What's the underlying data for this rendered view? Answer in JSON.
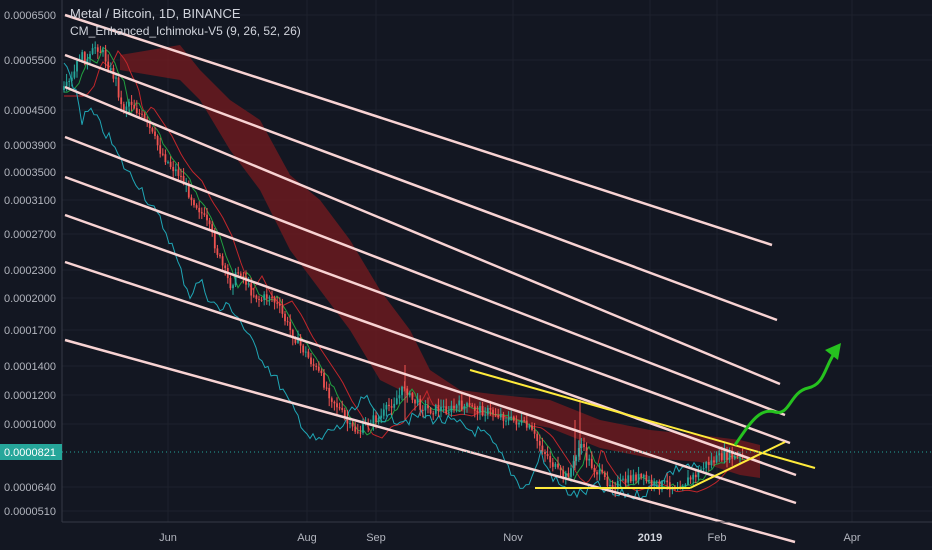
{
  "header": {
    "title": "Metal / Bitcoin, 1D, BINANCE",
    "indicator": "CM_Enhanced_Ichimoku-V5 (9, 26, 52, 26)"
  },
  "colors": {
    "background": "#131722",
    "grid": "#1e222d",
    "axis_line": "#363a45",
    "channel_lines": "#f8d3d3",
    "triangle": "#ffeb3b",
    "arrow": "#26c21f",
    "cloud": "#7a1a1f",
    "price_tag": "#26a69a",
    "candle_up": "#26a69a",
    "candle_down": "#ef5350",
    "kijun": "#c2262b",
    "tenkan": "#21a040",
    "chikou": "#1fa6b5"
  },
  "chart_data": {
    "type": "candlestick",
    "title": "Metal / Bitcoin, 1D, BINANCE",
    "indicator": "CM_Enhanced_Ichimoku-V5 (9, 26, 52, 26)",
    "y_scale": "log",
    "ylim": [
      4.75e-05,
      6.65e-05
    ],
    "x_range": [
      "2018-04-28",
      "2019-05-05"
    ],
    "y_ticks": [
      "0.0006500",
      "0.0005500",
      "0.0004500",
      "0.0003900",
      "0.0003500",
      "0.0003100",
      "0.0002700",
      "0.0002300",
      "0.0002000",
      "0.0001700",
      "0.0001400",
      "0.0001200",
      "0.0001000",
      "0.0000640",
      "0.0000510"
    ],
    "x_ticks": [
      {
        "label": "Jun",
        "bold": false
      },
      {
        "label": "Aug",
        "bold": false
      },
      {
        "label": "Sep",
        "bold": false
      },
      {
        "label": "Nov",
        "bold": false
      },
      {
        "label": "2019",
        "bold": true
      },
      {
        "label": "Feb",
        "bold": false
      },
      {
        "label": "Apr",
        "bold": false
      }
    ],
    "current_price": "0.0000821",
    "series": [
      {
        "name": "Metal / Bitcoin",
        "kind": "price"
      },
      {
        "kind": "kijun"
      },
      {
        "kind": "tenkan"
      },
      {
        "kind": "chikou"
      },
      {
        "kind": "cloud"
      }
    ],
    "annotations": [
      {
        "kind": "parallel-channel",
        "count": 7
      },
      {
        "kind": "descending-triangle"
      },
      {
        "kind": "projection-arrow",
        "direction": "up"
      }
    ]
  }
}
